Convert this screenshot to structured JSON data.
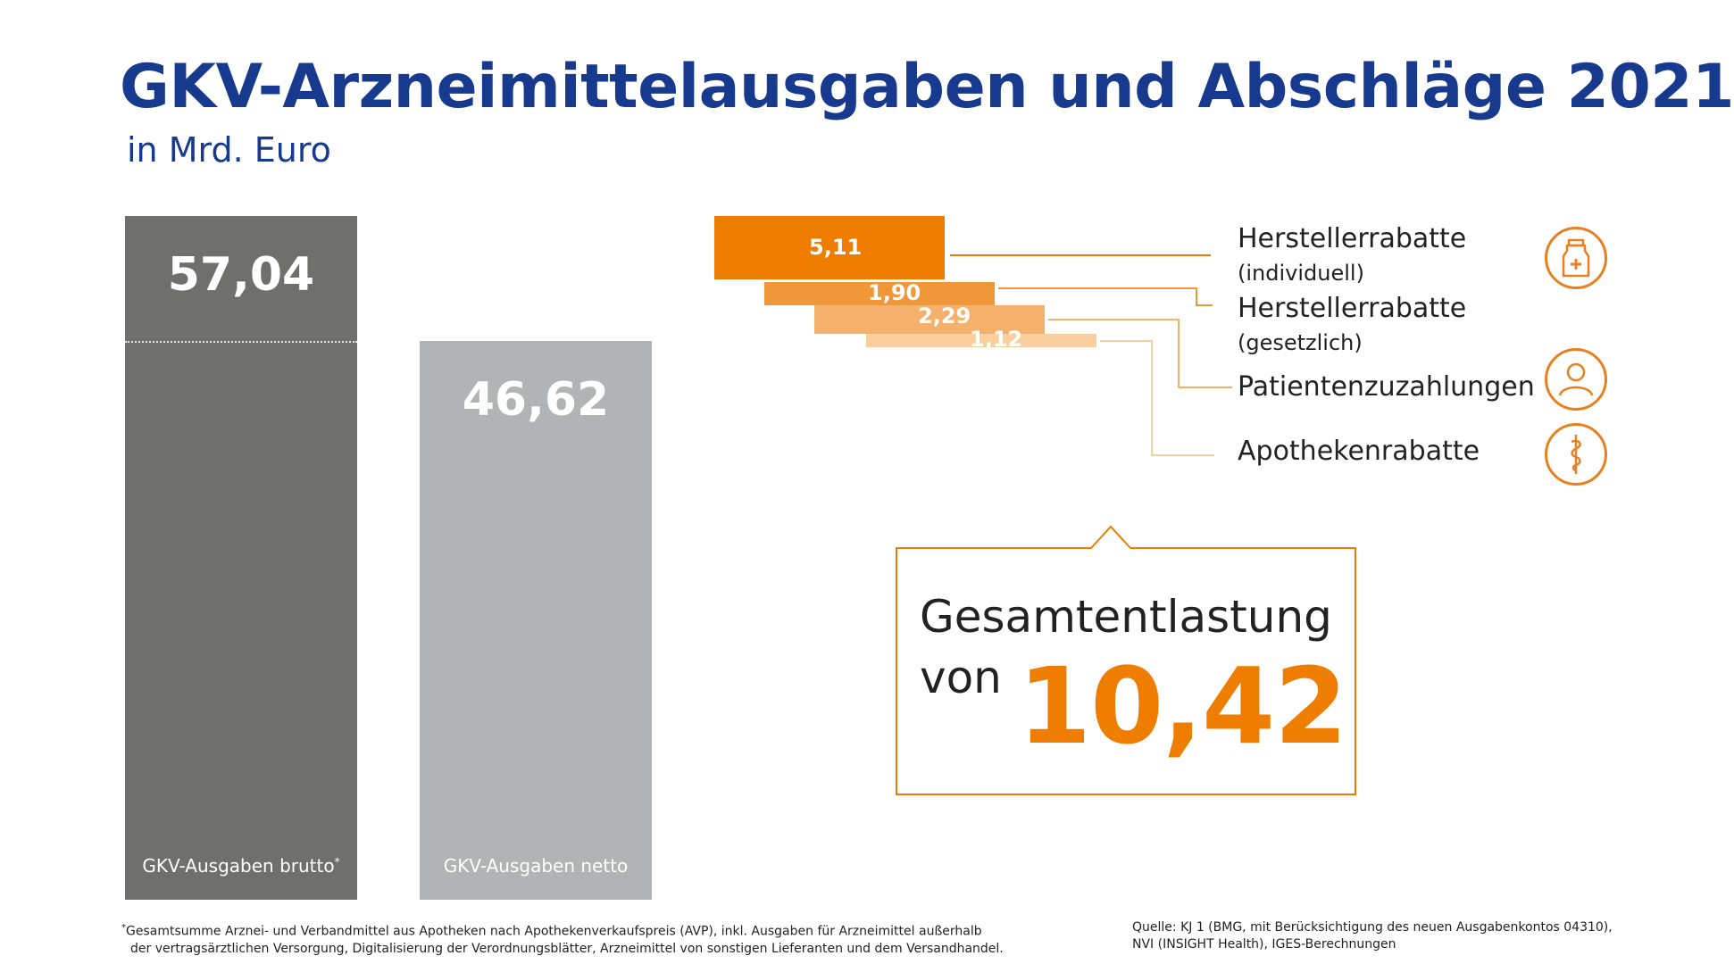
{
  "title": "GKV-Arzneimittelausgaben und Abschläge 2021",
  "subtitle": "in Mrd. Euro",
  "chart_data": {
    "type": "bar",
    "categories": [
      "GKV-Ausgaben brutto",
      "GKV-Ausgaben netto"
    ],
    "values": [
      57.04,
      46.62
    ],
    "value_labels": [
      "57,04",
      "46,62"
    ],
    "footnote_marker": "*",
    "discounts": [
      {
        "name": "Herstellerrabatte",
        "detail": "(individuell)",
        "value": 5.11,
        "label": "5,11",
        "color": "#ee7d00"
      },
      {
        "name": "Herstellerrabatte",
        "detail": "(gesetzlich)",
        "value": 1.9,
        "label": "1,90",
        "color": "#f0973a"
      },
      {
        "name": "Patientenzuzahlungen",
        "detail": "",
        "value": 2.29,
        "label": "2,29",
        "color": "#f5b06c"
      },
      {
        "name": "Apothekenrabatte",
        "detail": "",
        "value": 1.12,
        "label": "1,12",
        "color": "#f9cf9f"
      }
    ],
    "ylim": [
      0,
      57.04
    ]
  },
  "callout": {
    "line1": "Gesamtentlastung",
    "line2": "von",
    "value": "10,42"
  },
  "colors": {
    "title": "#173a8e",
    "brutto": "#6f6f6e",
    "netto": "#b2b3b4",
    "accent": "#ee7d00",
    "connector": "#f0a050"
  },
  "icons": [
    "medicine-bottle-icon",
    "person-icon",
    "caduceus-icon"
  ],
  "footnote": {
    "marker": "*",
    "line1": "Gesamtsumme Arznei- und Verbandmittel aus Apotheken nach Apothekenverkaufspreis (AVP),  inkl. Ausgaben für Arzneimittel außerhalb",
    "line2": "der vertragsärztlichen Versorgung, Digitalisierung der Verordnungsblätter, Arzneimittel von sonstigen Lieferanten und dem Versandhandel."
  },
  "source": {
    "line1": "Quelle: KJ 1 (BMG, mit Berücksichtigung des neuen Ausgabenkontos 04310),",
    "line2": "NVI (INSIGHT Health), IGES-Berechnungen"
  }
}
